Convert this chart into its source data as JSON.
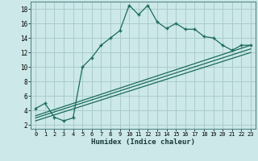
{
  "xlabel": "Humidex (Indice chaleur)",
  "bg_color": "#cce8e8",
  "grid_color": "#aacccc",
  "line_color": "#1a6b5a",
  "xlim": [
    -0.5,
    23.5
  ],
  "ylim": [
    1.5,
    19.0
  ],
  "xticks": [
    0,
    1,
    2,
    3,
    4,
    5,
    6,
    7,
    8,
    9,
    10,
    11,
    12,
    13,
    14,
    15,
    16,
    17,
    18,
    19,
    20,
    21,
    22,
    23
  ],
  "yticks": [
    2,
    4,
    6,
    8,
    10,
    12,
    14,
    16,
    18
  ],
  "main_x": [
    0,
    1,
    2,
    3,
    4,
    5,
    6,
    7,
    8,
    9,
    10,
    11,
    12,
    13,
    14,
    15,
    16,
    17,
    18,
    19,
    20,
    21,
    22,
    23
  ],
  "main_y": [
    4.3,
    5.0,
    3.1,
    2.6,
    3.0,
    10.0,
    11.3,
    13.0,
    14.0,
    15.0,
    18.5,
    17.2,
    18.5,
    16.2,
    15.3,
    16.0,
    15.2,
    15.2,
    14.2,
    14.0,
    13.0,
    12.3,
    13.0,
    13.0
  ],
  "line1_x": [
    0,
    23
  ],
  "line1_y": [
    3.3,
    13.0
  ],
  "line2_x": [
    0,
    23
  ],
  "line2_y": [
    3.0,
    12.5
  ],
  "line3_x": [
    0,
    23
  ],
  "line3_y": [
    2.6,
    12.0
  ]
}
